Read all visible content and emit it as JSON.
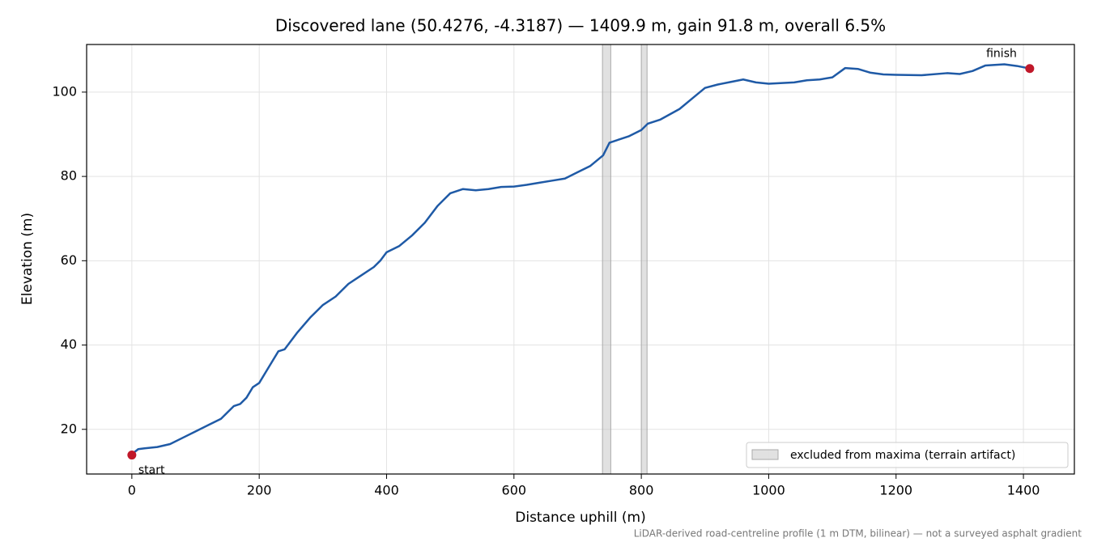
{
  "chart_data": {
    "type": "line",
    "title": "Discovered lane (50.4276, -4.3187) — 1409.9 m, gain 91.8 m, overall 6.5%",
    "x_label": "Distance uphill (m)",
    "y_label": "Elevation (m)",
    "note": "LiDAR-derived road-centreline profile (1 m DTM, bilinear) — not a surveyed asphalt gradient",
    "x": [
      0,
      10,
      20,
      40,
      60,
      80,
      100,
      120,
      140,
      160,
      170,
      180,
      190,
      200,
      210,
      220,
      230,
      240,
      260,
      280,
      300,
      320,
      340,
      360,
      380,
      390,
      400,
      420,
      440,
      460,
      480,
      490,
      500,
      520,
      540,
      560,
      580,
      600,
      620,
      640,
      660,
      680,
      700,
      720,
      740,
      750,
      760,
      780,
      800,
      810,
      830,
      860,
      880,
      900,
      920,
      940,
      960,
      980,
      1000,
      1040,
      1060,
      1080,
      1100,
      1120,
      1140,
      1160,
      1180,
      1200,
      1240,
      1280,
      1300,
      1320,
      1340,
      1370,
      1390,
      1410
    ],
    "values": [
      14.1,
      15.3,
      15.5,
      15.8,
      16.5,
      18,
      19.5,
      21,
      22.5,
      25.5,
      26,
      27.5,
      30,
      31,
      33.5,
      36,
      38.5,
      39,
      43,
      46.5,
      49.5,
      51.5,
      54.5,
      56.5,
      58.5,
      60,
      62,
      63.5,
      66,
      69,
      73,
      74.5,
      76,
      77,
      76.7,
      77,
      77.5,
      77.6,
      78,
      78.5,
      79,
      79.5,
      81,
      82.5,
      85,
      88,
      88.5,
      89.5,
      91,
      92.5,
      93.5,
      96,
      98.5,
      101,
      101.8,
      102.4,
      103,
      102.3,
      102,
      102.3,
      102.8,
      103,
      103.5,
      105.7,
      105.5,
      104.6,
      104.2,
      104.1,
      104,
      104.5,
      104.3,
      105,
      106.3,
      106.6,
      106.2,
      105.6
    ],
    "color": "#1f5aa6",
    "markers": {
      "x": [
        0,
        1409.9
      ],
      "values": [
        13.9,
        105.6
      ],
      "labels": [
        "start",
        "finish"
      ],
      "color": "#c0182a"
    },
    "bands": {
      "name": "excluded from maxima (terrain artifact)",
      "ranges": [
        [
          739,
          752
        ],
        [
          800,
          809
        ]
      ],
      "color": "#bdbdbd"
    },
    "xlim": [
      -71,
      1480
    ],
    "ylim": [
      9.4,
      111.3
    ],
    "xticks": [
      0,
      200,
      400,
      600,
      800,
      1000,
      1200,
      1400
    ],
    "yticks": [
      20,
      40,
      60,
      80,
      100
    ],
    "grid": true,
    "legend": "lower right"
  }
}
